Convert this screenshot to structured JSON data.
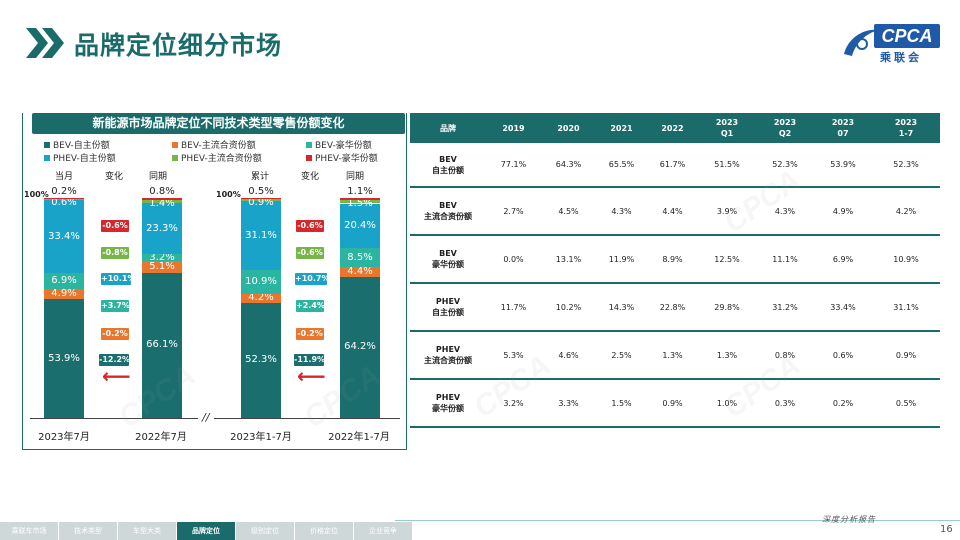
{
  "header": {
    "title": "品牌定位细分市场",
    "logo_text": "CPCA",
    "logo_sub": "乘联会"
  },
  "chart": {
    "panel_title": "新能源市场品牌定位不同技术类型零售份额变化",
    "legend": [
      {
        "label": "BEV-自主份额",
        "color": "#1a6e6e"
      },
      {
        "label": "BEV-主流合资份额",
        "color": "#e8762d"
      },
      {
        "label": "BEV-豪华份额",
        "color": "#2bb5a0"
      },
      {
        "label": "PHEV-自主份额",
        "color": "#1aa3c8"
      },
      {
        "label": "PHEV-主流合资份额",
        "color": "#76b648"
      },
      {
        "label": "PHEV-豪华份额",
        "color": "#d6282b"
      }
    ],
    "col_headers": [
      "当月",
      "变化",
      "同期",
      "累计",
      "变化",
      "同期"
    ],
    "pct100_label": "100%",
    "change_labels_a": [
      "-0.6%",
      "-0.8%",
      "+10.1%",
      "+3.7%",
      "-0.2%",
      "-12.2%"
    ],
    "change_labels_b": [
      "-0.6%",
      "-0.6%",
      "+10.7%",
      "+2.4%",
      "-0.2%",
      "-11.9%"
    ],
    "arrow_glyph": "⟵",
    "axis_break": "//"
  },
  "chart_data": {
    "type": "bar",
    "stacked": true,
    "ylim": [
      0,
      100
    ],
    "categories": [
      "2023年7月",
      "2022年7月",
      "2023年1-7月",
      "2022年1-7月"
    ],
    "series": [
      {
        "name": "BEV-自主份额",
        "values": [
          53.9,
          66.1,
          52.3,
          64.2
        ]
      },
      {
        "name": "BEV-主流合资份额",
        "values": [
          4.9,
          5.1,
          4.2,
          4.4
        ]
      },
      {
        "name": "BEV-豪华份额",
        "values": [
          6.9,
          3.2,
          10.9,
          8.5
        ]
      },
      {
        "name": "PHEV-自主份额",
        "values": [
          33.4,
          23.3,
          31.1,
          20.4
        ]
      },
      {
        "name": "PHEV-主流合资份额",
        "values": [
          0.6,
          1.4,
          0.9,
          1.5
        ]
      },
      {
        "name": "PHEV-豪华份额",
        "values": [
          0.2,
          0.8,
          0.5,
          1.1
        ]
      }
    ],
    "labels": [
      [
        "53.9%",
        "4.9%",
        "6.9%",
        "33.4%",
        "0.6%",
        "0.2%"
      ],
      [
        "66.1%",
        "5.1%",
        "3.2%",
        "23.3%",
        "1.4%",
        "0.8%"
      ],
      [
        "52.3%",
        "4.2%",
        "10.9%",
        "31.1%",
        "0.9%",
        "0.5%"
      ],
      [
        "64.2%",
        "4.4%",
        "8.5%",
        "20.4%",
        "1.5%",
        "1.1%"
      ]
    ],
    "legend_position": "top"
  },
  "table": {
    "headers": [
      "品牌",
      "2019",
      "2020",
      "2021",
      "2022",
      "2023\nQ1",
      "2023\nQ2",
      "2023\n07",
      "2023\n1-7"
    ],
    "rows": [
      {
        "name": "BEV\n自主份额",
        "values": [
          "77.1%",
          "64.3%",
          "65.5%",
          "61.7%",
          "51.5%",
          "52.3%",
          "53.9%",
          "52.3%"
        ]
      },
      {
        "name": "BEV\n主流合资份额",
        "values": [
          "2.7%",
          "4.5%",
          "4.3%",
          "4.4%",
          "3.9%",
          "4.3%",
          "4.9%",
          "4.2%"
        ]
      },
      {
        "name": "BEV\n豪华份额",
        "values": [
          "0.0%",
          "13.1%",
          "11.9%",
          "8.9%",
          "12.5%",
          "11.1%",
          "6.9%",
          "10.9%"
        ]
      },
      {
        "name": "PHEV\n自主份额",
        "values": [
          "11.7%",
          "10.2%",
          "14.3%",
          "22.8%",
          "29.8%",
          "31.2%",
          "33.4%",
          "31.1%"
        ]
      },
      {
        "name": "PHEV\n主流合资份额",
        "values": [
          "5.3%",
          "4.6%",
          "2.5%",
          "1.3%",
          "1.3%",
          "0.8%",
          "0.6%",
          "0.9%"
        ]
      },
      {
        "name": "PHEV\n豪华份额",
        "values": [
          "3.2%",
          "3.3%",
          "1.5%",
          "0.9%",
          "1.0%",
          "0.3%",
          "0.2%",
          "0.5%"
        ]
      }
    ]
  },
  "footer": {
    "tagline": "深度分析报告",
    "page_number": "16",
    "nav_tabs": [
      "乘联车市场",
      "技术类型",
      "车型大类",
      "品牌定位",
      "级别定位",
      "价格定位",
      "企业竞争"
    ],
    "active_tab": 3
  }
}
